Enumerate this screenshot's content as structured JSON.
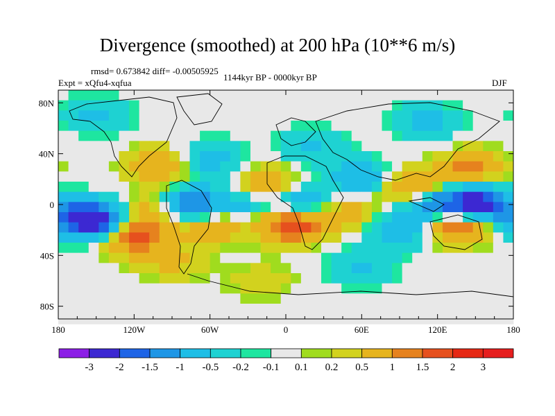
{
  "chart_data": {
    "type": "heatmap",
    "title": "Divergence (smoothed) at 200 hPa (10**6 m/s)",
    "stats_line": "rmsd= 0.673842 diff= -0.00505925",
    "experiment_line": "Expt = xQfu4-xqfua",
    "period_line": "1144kyr BP - 0000kyr BP",
    "season": "DJF",
    "x_range": [
      -180,
      180
    ],
    "y_range": [
      -90,
      90
    ],
    "x_ticks": [
      {
        "value": -180,
        "label": "180"
      },
      {
        "value": -120,
        "label": "120W"
      },
      {
        "value": -60,
        "label": "60W"
      },
      {
        "value": 0,
        "label": "0"
      },
      {
        "value": 60,
        "label": "60E"
      },
      {
        "value": 120,
        "label": "120E"
      },
      {
        "value": 180,
        "label": "180"
      }
    ],
    "y_ticks": [
      {
        "value": 80,
        "label": "80N"
      },
      {
        "value": 40,
        "label": "40N"
      },
      {
        "value": 0,
        "label": "0"
      },
      {
        "value": -40,
        "label": "40S"
      },
      {
        "value": -80,
        "label": "80S"
      }
    ],
    "colorbar": {
      "levels": [
        -3,
        -2,
        -1.5,
        -1,
        -0.5,
        -0.2,
        -0.1,
        0.1,
        0.2,
        0.5,
        1,
        1.5,
        2,
        3
      ],
      "labels": [
        "-3",
        "-2",
        "-1.5",
        "-1",
        "-0.5",
        "-0.2",
        "-0.1",
        "0.1",
        "0.2",
        "0.5",
        "1",
        "1.5",
        "2",
        "3"
      ],
      "colors": [
        "#8c1ee6",
        "#3c28d2",
        "#1e64e6",
        "#1e96e6",
        "#1ebee6",
        "#1ed2d2",
        "#1ee6a0",
        "#e8e8e8",
        "#a0dc1e",
        "#d2d21e",
        "#e6b41e",
        "#e6821e",
        "#e6501e",
        "#e62814",
        "#e61e1e"
      ]
    },
    "anomaly_centers": [
      {
        "lon": -155,
        "lat": -12,
        "value": -3.0
      },
      {
        "lon": -120,
        "lat": -25,
        "value": 1.6
      },
      {
        "lon": -100,
        "lat": -5,
        "value": 1.0
      },
      {
        "lon": -75,
        "lat": -2,
        "value": -2.2
      },
      {
        "lon": -60,
        "lat": -15,
        "value": 1.3
      },
      {
        "lon": -30,
        "lat": 0,
        "value": -0.8
      },
      {
        "lon": -15,
        "lat": 15,
        "value": 1.0
      },
      {
        "lon": 5,
        "lat": -15,
        "value": 2.2
      },
      {
        "lon": 15,
        "lat": 0,
        "value": -1.4
      },
      {
        "lon": 45,
        "lat": -5,
        "value": 1.0
      },
      {
        "lon": 60,
        "lat": 20,
        "value": -1.0
      },
      {
        "lon": 90,
        "lat": -20,
        "value": -1.0
      },
      {
        "lon": 100,
        "lat": 12,
        "value": 1.5
      },
      {
        "lon": 115,
        "lat": 0,
        "value": -1.6
      },
      {
        "lon": 135,
        "lat": -15,
        "value": 2.0
      },
      {
        "lon": 150,
        "lat": 0,
        "value": -2.8
      },
      {
        "lon": 145,
        "lat": 28,
        "value": 1.2
      },
      {
        "lon": -100,
        "lat": 30,
        "value": 1.0
      },
      {
        "lon": -60,
        "lat": 35,
        "value": -0.8
      },
      {
        "lon": 20,
        "lat": 45,
        "value": -0.6
      },
      {
        "lon": -150,
        "lat": 70,
        "value": -0.6
      },
      {
        "lon": 110,
        "lat": 65,
        "value": -0.7
      },
      {
        "lon": -90,
        "lat": -45,
        "value": 0.6
      },
      {
        "lon": 60,
        "lat": -50,
        "value": -0.6
      },
      {
        "lon": -20,
        "lat": -60,
        "value": 0.4
      }
    ]
  }
}
